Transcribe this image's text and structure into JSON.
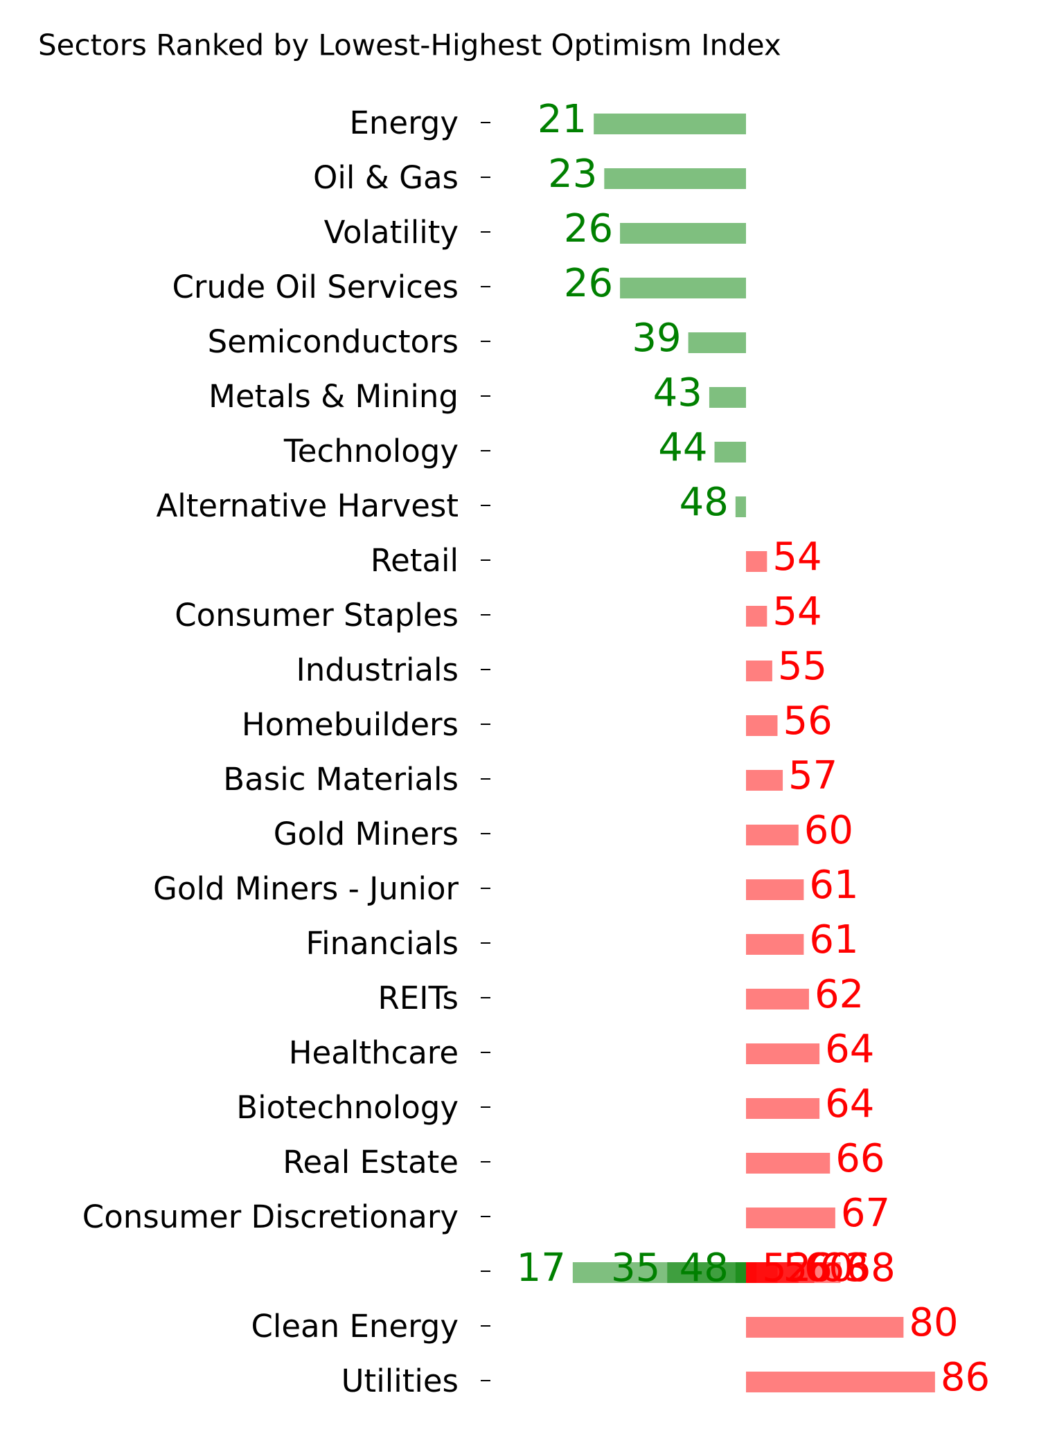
{
  "chart_data": {
    "type": "diverging-bar",
    "title": "Sectors Ranked by Lowest-Highest Optimism Index",
    "categories": [
      "Energy",
      "Oil & Gas",
      "Volatility",
      "Crude Oil Services",
      "Semiconductors",
      "Metals & Mining",
      "Technology",
      "Alternative Harvest",
      "Retail",
      "Consumer Staples",
      "Industrials",
      "Homebuilders",
      "Basic Materials",
      "Gold Miners",
      "Gold Miners - Junior",
      "Financials",
      "REITs",
      "Healthcare",
      "Biotechnology",
      "Real Estate",
      "Consumer Discretionary",
      null,
      null,
      null,
      null,
      null,
      null,
      null,
      null,
      "Clean Energy",
      "Utilities"
    ],
    "values": [
      21,
      23,
      26,
      26,
      39,
      43,
      44,
      48,
      54,
      54,
      55,
      56,
      57,
      60,
      61,
      61,
      62,
      64,
      64,
      66,
      67,
      17,
      35,
      48,
      52,
      56,
      60,
      63,
      68,
      80,
      86
    ],
    "base": 50,
    "below_color": "#008000",
    "above_color": "#ff0000"
  }
}
